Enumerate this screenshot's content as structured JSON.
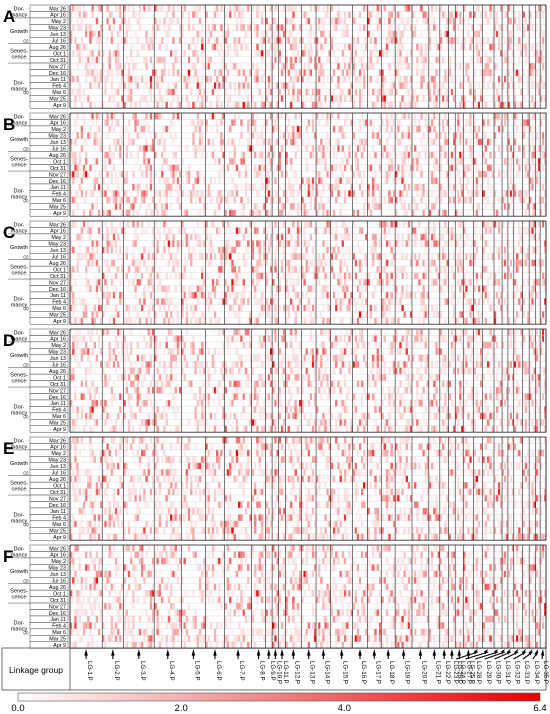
{
  "chart_data": {
    "type": "heatmap",
    "panels": [
      {
        "letter": "A"
      },
      {
        "letter": "B"
      },
      {
        "letter": "C"
      },
      {
        "letter": "D"
      },
      {
        "letter": "E"
      },
      {
        "letter": "F"
      }
    ],
    "rows": [
      "Mar 26",
      "Apr 16",
      "May 2",
      "May 23",
      "Jun 13",
      "Jul 16",
      "Aug 26",
      "Oct 1",
      "Oct 31",
      "Nov 27",
      "Dec 16",
      "Jan 11",
      "Feb 4",
      "Mar 6",
      "Mar 25",
      "Apr 9"
    ],
    "stages": [
      {
        "label": "Dor-\nmancy",
        "from": 0,
        "to": 1
      },
      {
        "label": "Growth",
        "from": 2,
        "to": 5
      },
      {
        "label": "Senes-\ncence",
        "from": 6,
        "to": 8
      },
      {
        "label": "Dor-\nmancy",
        "from": 9,
        "to": 15
      }
    ],
    "stage_markers": [
      {
        "text": "(2)",
        "row": 5
      },
      {
        "text": "(2)",
        "row": 13
      }
    ],
    "linkage_group_label": "Linkage group",
    "linkage_groups": [
      "LG-1.P",
      "LG-2.P",
      "LG-3.P",
      "LG-4.P",
      "LG-5.P",
      "LG-6.P",
      "LG-7.P",
      "LG-8.P",
      "LG-9.P",
      "LG-10.P",
      "LG-11.P",
      "LG-12.P",
      "LG-13.P",
      "LG-14.P",
      "LG-15.P",
      "LG-16.P",
      "LG-17.P",
      "LG-18.P",
      "LG-19.P",
      "LG-20.P",
      "LG-21.P",
      "LG-22.P",
      "LG-23.P",
      "LG-24.P",
      "LG-25.P",
      "LG-26.P",
      "LG-27.P",
      "LG-28.P",
      "LG-29.P",
      "LG-30.P",
      "LG-31.P",
      "LG-32.P",
      "LG-33.P",
      "LG-34.P",
      "LG-35.P"
    ],
    "group_widths": [
      4.4,
      2.9,
      4.2,
      3.7,
      3.3,
      2.6,
      3.7,
      1.9,
      0.9,
      0.9,
      0.9,
      2.2,
      2.0,
      2.0,
      3.0,
      2.0,
      1.9,
      1.9,
      2.3,
      2.3,
      1.5,
      1.2,
      0.9,
      1.1,
      1.4,
      1.2,
      1.6,
      1.1,
      0.8,
      0.8,
      1.2,
      0.9,
      0.9,
      0.6,
      0.8
    ],
    "colorbar": {
      "min": 0.0,
      "max": 6.4,
      "ticks": [
        "0.0",
        "2.0",
        "4.0",
        "6.4"
      ],
      "low_color": "#ffffff",
      "high_color": "#e60000"
    },
    "cell_values": "synthetic pattern: mostly 0-1.5 with scattered high values up to 6.4 per cell"
  }
}
